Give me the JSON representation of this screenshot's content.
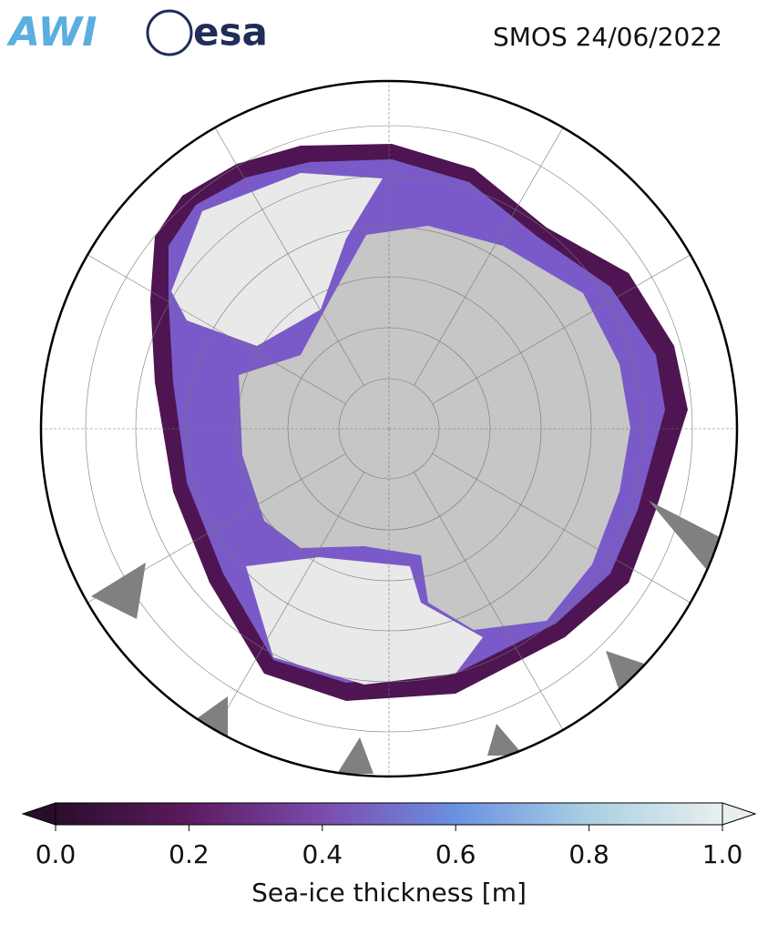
{
  "header": {
    "logos": [
      "AWI",
      "esa"
    ],
    "title": "SMOS 24/06/2022"
  },
  "colorbar": {
    "label": "Sea-ice thickness [m]",
    "range": [
      0,
      1
    ],
    "ticks": [
      {
        "value": 0,
        "label": "0.0"
      },
      {
        "value": 0.2,
        "label": "0.2"
      },
      {
        "value": 0.4,
        "label": "0.4"
      },
      {
        "value": 0.6,
        "label": "0.6"
      },
      {
        "value": 0.8,
        "label": "0.8"
      },
      {
        "value": 1,
        "label": "1.0"
      }
    ],
    "colors": [
      "#2a0d2c",
      "#5b1b5f",
      "#7b4bad",
      "#6b90e2",
      "#a9d0e2",
      "#e9efef"
    ]
  }
}
